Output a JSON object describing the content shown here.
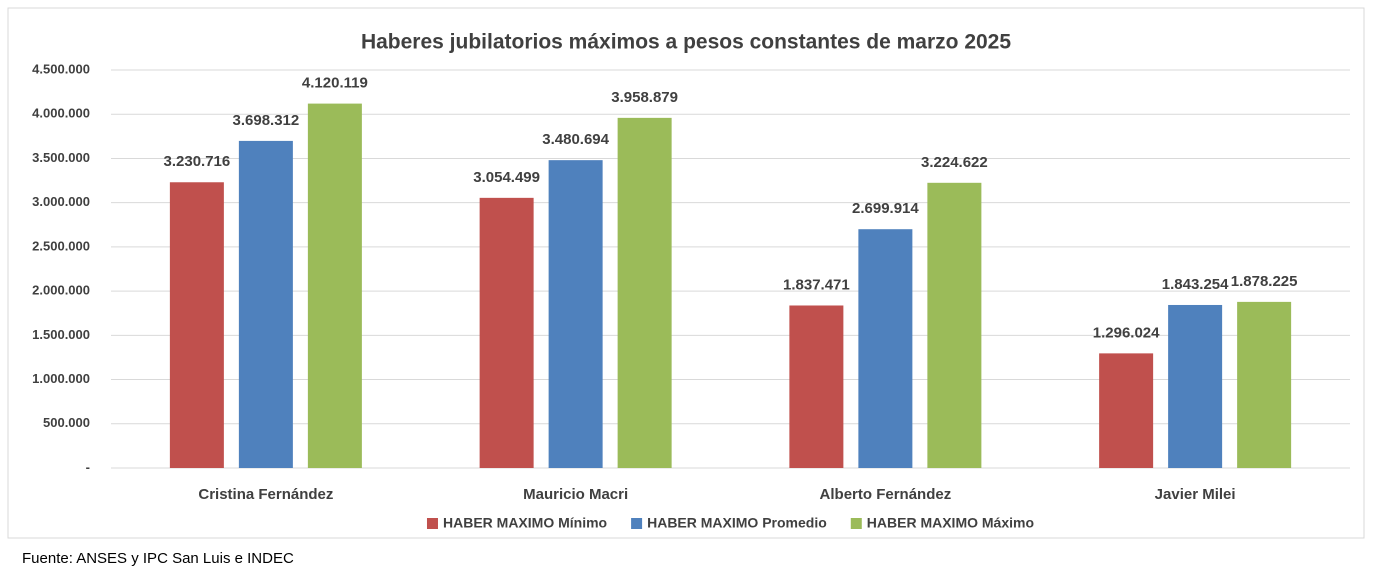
{
  "chart_data": {
    "type": "bar",
    "title": "Haberes jubilatorios máximos a pesos constantes de marzo 2025",
    "categories": [
      "Cristina Fernández",
      "Mauricio Macri",
      "Alberto Fernández",
      "Javier Milei"
    ],
    "series": [
      {
        "name": "HABER MAXIMO Mínimo",
        "color": "#c0504d",
        "values": [
          3230716,
          3054499,
          1837471,
          1296024
        ],
        "value_labels": [
          "3.230.716",
          "3.054.499",
          "1.837.471",
          "1.296.024"
        ]
      },
      {
        "name": "HABER MAXIMO Promedio",
        "color": "#4f81bd",
        "values": [
          3698312,
          3480694,
          2699914,
          1843254
        ],
        "value_labels": [
          "3.698.312",
          "3.480.694",
          "2.699.914",
          "1.843.254"
        ]
      },
      {
        "name": "HABER MAXIMO Máximo",
        "color": "#9bbb59",
        "values": [
          4120119,
          3958879,
          3224622,
          1878225
        ],
        "value_labels": [
          "4.120.119",
          "3.958.879",
          "3.224.622",
          "1.878.225"
        ]
      }
    ],
    "ylim": [
      0,
      4500000
    ],
    "yticks": [
      {
        "value": 0,
        "label": "-"
      },
      {
        "value": 500000,
        "label": "500.000"
      },
      {
        "value": 1000000,
        "label": "1.000.000"
      },
      {
        "value": 1500000,
        "label": "1.500.000"
      },
      {
        "value": 2000000,
        "label": "2.000.000"
      },
      {
        "value": 2500000,
        "label": "2.500.000"
      },
      {
        "value": 3000000,
        "label": "3.000.000"
      },
      {
        "value": 3500000,
        "label": "3.500.000"
      },
      {
        "value": 4000000,
        "label": "4.000.000"
      },
      {
        "value": 4500000,
        "label": "4.500.000"
      }
    ],
    "grid": true,
    "legend": "bottom",
    "source": "Fuente: ANSES y IPC San Luis e INDEC"
  }
}
